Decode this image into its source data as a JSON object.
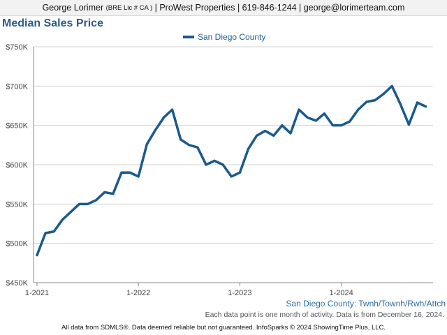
{
  "header": {
    "agent_name": "George Lorimer",
    "license": "(BRE Lic # CA )",
    "rest": "| ProWest Properties | 619-846-1244 | george@lorimerteam.com"
  },
  "title": "Median Sales Price",
  "chart_data": {
    "type": "line",
    "title": "Median Sales Price",
    "xlabel": "",
    "ylabel": "",
    "ylim": [
      450000,
      750000
    ],
    "yticks": [
      450000,
      500000,
      550000,
      600000,
      650000,
      700000,
      750000
    ],
    "ytick_labels": [
      "$450K",
      "$500K",
      "$550K",
      "$600K",
      "$650K",
      "$700K",
      "$750K"
    ],
    "xticks": [
      "2021-01",
      "2022-01",
      "2023-01",
      "2024-01"
    ],
    "xtick_labels": [
      "1-2021",
      "1-2022",
      "1-2023",
      "1-2024"
    ],
    "grid": true,
    "legend_position": "top-center",
    "series": [
      {
        "name": "San Diego County",
        "color": "#1a5a8c",
        "x": [
          "2021-01",
          "2021-02",
          "2021-03",
          "2021-04",
          "2021-05",
          "2021-06",
          "2021-07",
          "2021-08",
          "2021-09",
          "2021-10",
          "2021-11",
          "2021-12",
          "2022-01",
          "2022-02",
          "2022-03",
          "2022-04",
          "2022-05",
          "2022-06",
          "2022-07",
          "2022-08",
          "2022-09",
          "2022-10",
          "2022-11",
          "2022-12",
          "2023-01",
          "2023-02",
          "2023-03",
          "2023-04",
          "2023-05",
          "2023-06",
          "2023-07",
          "2023-08",
          "2023-09",
          "2023-10",
          "2023-11",
          "2023-12",
          "2024-01",
          "2024-02",
          "2024-03",
          "2024-04",
          "2024-05",
          "2024-06",
          "2024-07",
          "2024-08",
          "2024-09",
          "2024-10",
          "2024-11"
        ],
        "values": [
          485000,
          513000,
          515000,
          530000,
          540000,
          550000,
          550000,
          555000,
          565000,
          563000,
          590000,
          590000,
          585000,
          626000,
          644000,
          660000,
          670000,
          632000,
          625000,
          622000,
          600000,
          605000,
          600000,
          585000,
          590000,
          620000,
          637000,
          643000,
          637000,
          650000,
          640000,
          670000,
          660000,
          656000,
          665000,
          650000,
          650000,
          655000,
          670000,
          680000,
          682000,
          690000,
          700000,
          677000,
          651000,
          679000,
          674000
        ]
      }
    ]
  },
  "series_caption": "San Diego County: Twnh/Townh/Rwh/Attch",
  "note": "Each data point is one month of activity. Data is from December 16, 2024.",
  "footer": "All data from SDMLS®. Data deemed reliable but not guaranteed. InfoSparks © 2024 ShowingTime Plus, LLC."
}
